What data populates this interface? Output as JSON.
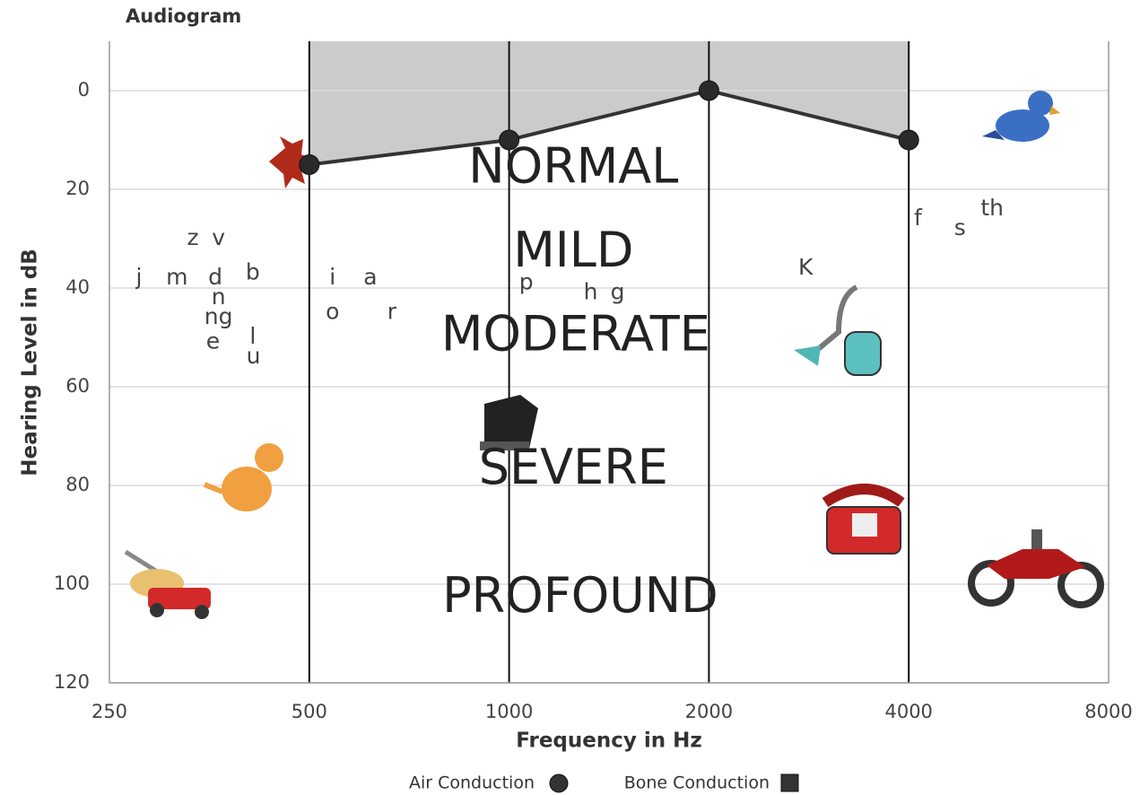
{
  "chart_data": {
    "type": "line",
    "title": "Audiogram",
    "x_label": "Frequency in Hz",
    "y_label": "Hearing Level in dB",
    "x_scale": "log2",
    "xlim": [
      250,
      8000
    ],
    "xticks": [
      250,
      500,
      1000,
      2000,
      4000,
      8000
    ],
    "ylim": [
      -10,
      120
    ],
    "y_inverted": true,
    "yticks": [
      0,
      20,
      40,
      60,
      80,
      100,
      120
    ],
    "grid": true,
    "shade_above_line": true,
    "series": [
      {
        "name": "Air Conduction",
        "marker": "circle",
        "color": "#333333",
        "x": [
          500,
          1000,
          2000,
          4000
        ],
        "values": [
          15,
          10,
          0,
          10
        ]
      },
      {
        "name": "Bone Conduction",
        "marker": "square",
        "color": "#333333",
        "x": [],
        "values": []
      }
    ],
    "regions": [
      {
        "label": "NORMAL",
        "x": 1250,
        "y": 16
      },
      {
        "label": "MILD",
        "x": 1250,
        "y": 33
      },
      {
        "label": "MODERATE",
        "x": 1260,
        "y": 50
      },
      {
        "label": "SEVERE",
        "x": 1250,
        "y": 77
      },
      {
        "label": "PROFOUND",
        "x": 1280,
        "y": 103
      }
    ],
    "speech_sounds": [
      {
        "label": "z",
        "x": 334,
        "y": 30
      },
      {
        "label": "v",
        "x": 365,
        "y": 30
      },
      {
        "label": "j",
        "x": 277,
        "y": 38
      },
      {
        "label": "m",
        "x": 316,
        "y": 38
      },
      {
        "label": "d",
        "x": 361,
        "y": 38
      },
      {
        "label": "b",
        "x": 411,
        "y": 37
      },
      {
        "label": "n",
        "x": 365,
        "y": 42
      },
      {
        "label": "ng",
        "x": 365,
        "y": 46
      },
      {
        "label": "e",
        "x": 358,
        "y": 51
      },
      {
        "label": "l",
        "x": 411,
        "y": 50
      },
      {
        "label": "u",
        "x": 412,
        "y": 54
      },
      {
        "label": "i",
        "x": 542,
        "y": 38
      },
      {
        "label": "a",
        "x": 618,
        "y": 38
      },
      {
        "label": "o",
        "x": 542,
        "y": 45
      },
      {
        "label": "r",
        "x": 666,
        "y": 45
      },
      {
        "label": "p",
        "x": 1061,
        "y": 39
      },
      {
        "label": "h",
        "x": 1327,
        "y": 41
      },
      {
        "label": "g",
        "x": 1457,
        "y": 41
      },
      {
        "label": "K",
        "x": 2797,
        "y": 36
      },
      {
        "label": "f",
        "x": 4129,
        "y": 26
      },
      {
        "label": "s",
        "x": 4778,
        "y": 28
      },
      {
        "label": "th",
        "x": 5342,
        "y": 24
      }
    ]
  }
}
